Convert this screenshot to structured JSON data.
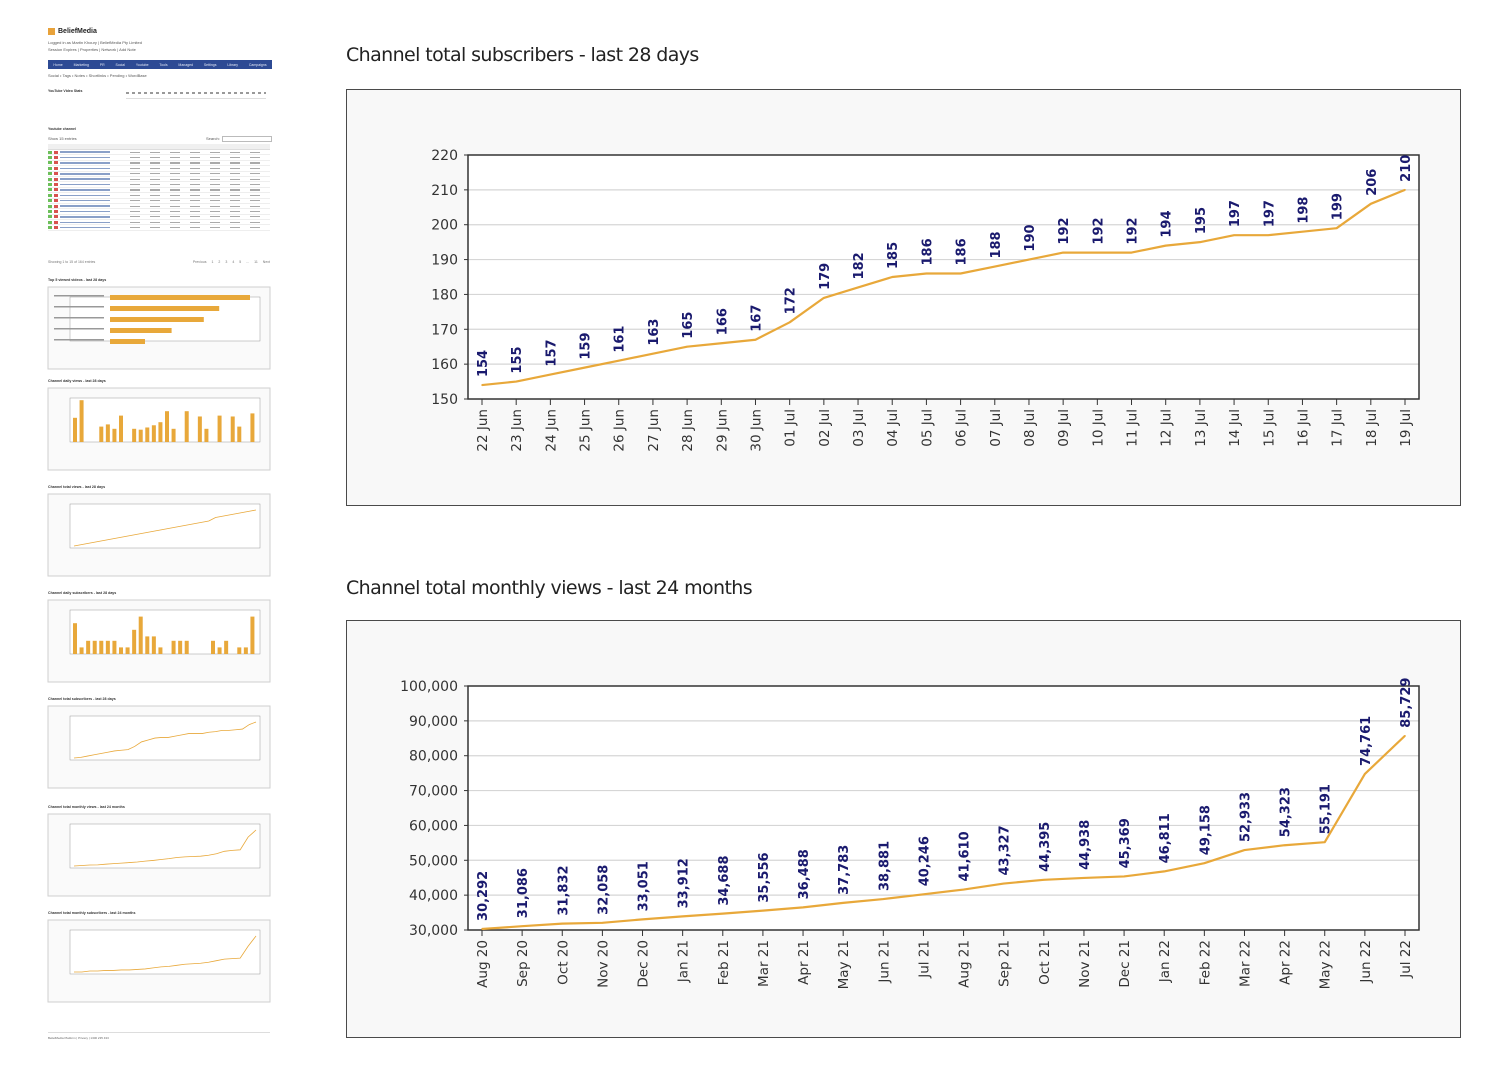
{
  "thumbnail": {
    "brand": "BeliefMedia",
    "login_line": "Logged in as Martin Khoury | BeliefMedia Pty Limited",
    "session_line": "Session Expires | Properties | Network | Add Note",
    "nav_items": [
      "Home",
      "Marketing",
      "PR",
      "Social",
      "Youtube",
      "Tools",
      "Managed",
      "Settings",
      "Library",
      "Campaigns"
    ],
    "subnav": "Social • Tags • Notes • Shortlinks • Pending • WordBase",
    "section_youtube_video_stats": "YouTube Video Stats",
    "section_youtube_channel": "Youtube channel",
    "table_controls": {
      "show_label": "Show 15 entries",
      "search_label": "Search:"
    },
    "table_columns": [
      "Title",
      "Duration",
      "Views",
      "Likes",
      "Dislikes",
      "Favorites",
      "Comments",
      "Published"
    ],
    "table_row_count": 15,
    "table_info": "Showing 1 to 15 of 164 entries",
    "pagination": [
      "Previous",
      "1",
      "2",
      "3",
      "4",
      "5",
      "...",
      "11",
      "Next"
    ],
    "mini_sections": [
      "Top 5 viewed videos - last 28 days",
      "Channel daily views - last 28 days",
      "Channel total views - last 28 days",
      "Channel daily subscribers - last 28 days",
      "Channel total subscribers - last 28 days",
      "Channel total monthly views - last 24 months",
      "Channel total monthly subscribers - last 24 months"
    ],
    "footer": "BeliefMedia Platform | Privacy | 1300 235 433"
  },
  "colors": {
    "line": "#e8a83a",
    "label": "#1a1a6e",
    "nav": "#2d4a94",
    "bar": "#e8a83a"
  },
  "chart_data": [
    {
      "type": "line",
      "title": "Channel total subscribers - last 28 days",
      "xlabel": "",
      "ylabel": "",
      "ylim": [
        150,
        220
      ],
      "yticks": [
        150,
        160,
        170,
        180,
        190,
        200,
        210,
        220
      ],
      "ytick_labels": [
        "150",
        "160",
        "170",
        "180",
        "190",
        "200",
        "210",
        "220"
      ],
      "grid": true,
      "legend": "none",
      "categories": [
        "22 Jun",
        "23 Jun",
        "24 Jun",
        "25 Jun",
        "26 Jun",
        "27 Jun",
        "28 Jun",
        "29 Jun",
        "30 Jun",
        "01 Jul",
        "02 Jul",
        "03 Jul",
        "04 Jul",
        "05 Jul",
        "06 Jul",
        "07 Jul",
        "08 Jul",
        "09 Jul",
        "10 Jul",
        "11 Jul",
        "12 Jul",
        "13 Jul",
        "14 Jul",
        "15 Jul",
        "16 Jul",
        "17 Jul",
        "18 Jul",
        "19 Jul"
      ],
      "values": [
        154,
        155,
        157,
        159,
        161,
        163,
        165,
        166,
        167,
        172,
        179,
        182,
        185,
        186,
        186,
        188,
        190,
        192,
        192,
        192,
        194,
        195,
        197,
        197,
        198,
        199,
        206,
        210
      ],
      "value_labels": [
        "154",
        "155",
        "157",
        "159",
        "161",
        "163",
        "165",
        "166",
        "167",
        "172",
        "179",
        "182",
        "185",
        "186",
        "186",
        "188",
        "190",
        "192",
        "192",
        "192",
        "194",
        "195",
        "197",
        "197",
        "198",
        "199",
        "206",
        "210"
      ]
    },
    {
      "type": "line",
      "title": "Channel total monthly views - last 24 months",
      "xlabel": "",
      "ylabel": "",
      "ylim": [
        30000,
        100000
      ],
      "yticks": [
        30000,
        40000,
        50000,
        60000,
        70000,
        80000,
        90000,
        100000
      ],
      "ytick_labels": [
        "30,000",
        "40,000",
        "50,000",
        "60,000",
        "70,000",
        "80,000",
        "90,000",
        "100,000"
      ],
      "grid": true,
      "legend": "none",
      "categories": [
        "Aug 20",
        "Sep 20",
        "Oct 20",
        "Nov 20",
        "Dec 20",
        "Jan 21",
        "Feb 21",
        "Mar 21",
        "Apr 21",
        "May 21",
        "Jun 21",
        "Jul 21",
        "Aug 21",
        "Sep 21",
        "Oct 21",
        "Nov 21",
        "Dec 21",
        "Jan 22",
        "Feb 22",
        "Mar 22",
        "Apr 22",
        "May 22",
        "Jun 22",
        "Jul 22"
      ],
      "values": [
        30292,
        31086,
        31832,
        32058,
        33051,
        33912,
        34688,
        35556,
        36488,
        37783,
        38881,
        40246,
        41610,
        43327,
        44395,
        44938,
        45369,
        46811,
        49158,
        52933,
        54323,
        55191,
        74761,
        85729
      ],
      "value_labels": [
        "30,292",
        "31,086",
        "31,832",
        "32,058",
        "33,051",
        "33,912",
        "34,688",
        "35,556",
        "36,488",
        "37,783",
        "38,881",
        "40,246",
        "41,610",
        "43,327",
        "44,395",
        "44,938",
        "45,369",
        "46,811",
        "49,158",
        "52,933",
        "54,323",
        "55,191",
        "74,761",
        "85,729"
      ]
    }
  ]
}
